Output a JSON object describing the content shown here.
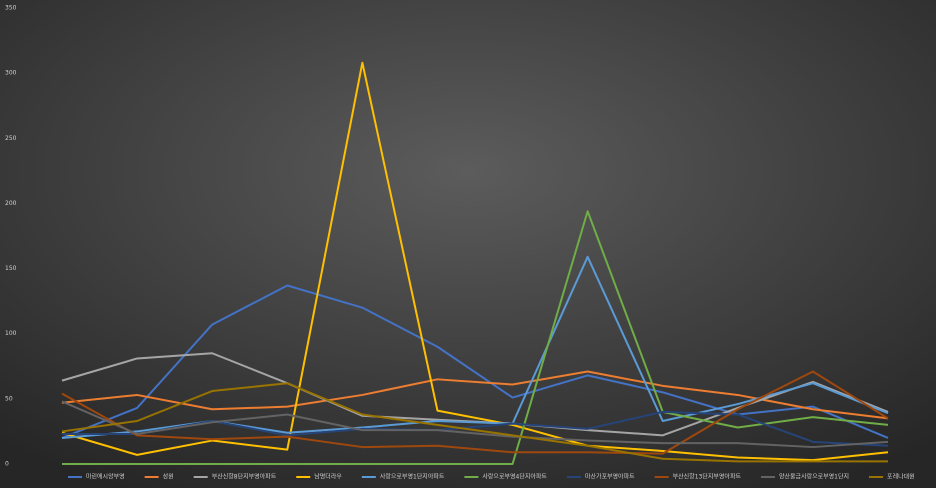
{
  "chart_data": {
    "type": "line",
    "categories": [
      null,
      null,
      null,
      null,
      null,
      null,
      null,
      null,
      null,
      null,
      null,
      null
    ],
    "ylim": [
      0,
      350
    ],
    "yticks": [
      0,
      50,
      100,
      150,
      200,
      250,
      300,
      350
    ],
    "grid": false,
    "legend": "bottom",
    "series": [
      {
        "name": "마린에시앙부영",
        "color": "#4472c4",
        "values": [
          20,
          43,
          107,
          137,
          120,
          90,
          51,
          68,
          55,
          38,
          44,
          20
        ]
      },
      {
        "name": "성원",
        "color": "#ed7d31",
        "values": [
          47,
          53,
          42,
          44,
          53,
          65,
          61,
          71,
          60,
          53,
          42,
          35
        ]
      },
      {
        "name": "부산신항8단지부영아파트",
        "color": "#a5a5a5",
        "values": [
          64,
          81,
          85,
          62,
          37,
          34,
          31,
          26,
          22,
          43,
          63,
          40
        ]
      },
      {
        "name": "남명더라우",
        "color": "#ffc000",
        "values": [
          24,
          7,
          18,
          11,
          308,
          41,
          30,
          14,
          10,
          5,
          3,
          9
        ]
      },
      {
        "name": "사랑으로부영1단지아파트",
        "color": "#5b9bd5",
        "values": [
          20,
          25,
          33,
          24,
          28,
          33,
          31,
          159,
          33,
          46,
          62,
          39
        ]
      },
      {
        "name": "사랑으로부영4단지아파트",
        "color": "#70ad47",
        "values": [
          0,
          0,
          0,
          0,
          0,
          0,
          0,
          194,
          40,
          28,
          36,
          30
        ]
      },
      {
        "name": "마산가포부영아파트",
        "color": "#264478",
        "values": [
          23,
          23,
          33,
          22,
          27,
          26,
          31,
          27,
          40,
          38,
          17,
          14
        ]
      },
      {
        "name": "부산신항13단지부영아파트",
        "color": "#9e480e",
        "values": [
          54,
          22,
          19,
          21,
          13,
          14,
          9,
          9,
          8,
          42,
          71,
          35
        ]
      },
      {
        "name": "양산물금사랑으로부영1단지",
        "color": "#636363",
        "values": [
          48,
          23,
          32,
          38,
          26,
          26,
          21,
          18,
          16,
          16,
          13,
          17
        ]
      },
      {
        "name": "포레나대원",
        "color": "#997300",
        "values": [
          25,
          33,
          56,
          62,
          38,
          30,
          22,
          14,
          4,
          2,
          2,
          2
        ]
      }
    ]
  }
}
